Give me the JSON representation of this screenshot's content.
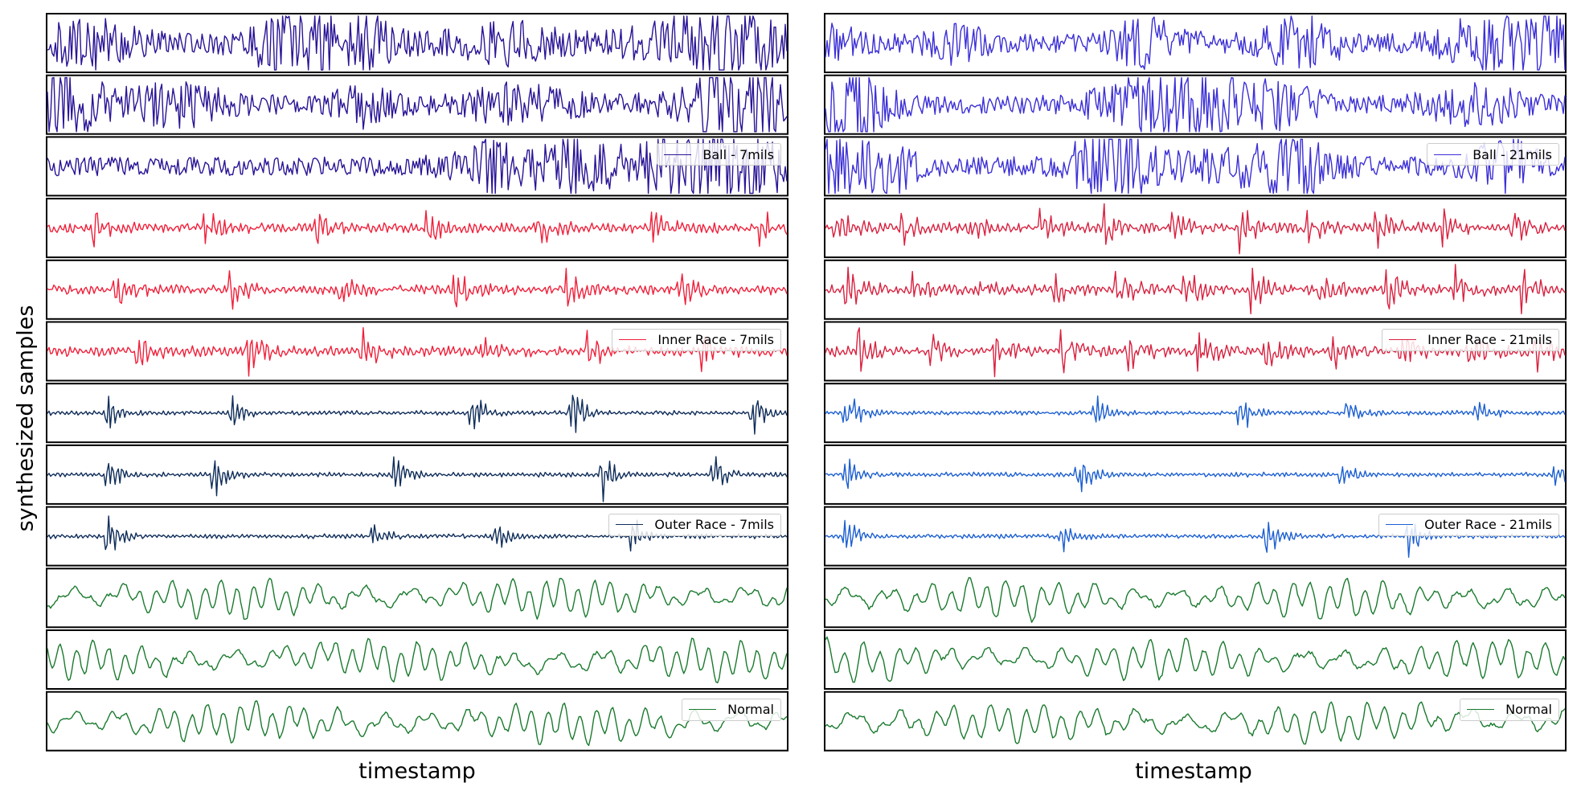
{
  "chart_data": [
    {
      "type": "line",
      "title": "",
      "xlabel": "timestamp",
      "ylabel": "synthesized samples",
      "grid": false,
      "groups": [
        {
          "legend": "Ball - 7mils",
          "color": "#2a1496",
          "legend_position": "bottom-right",
          "samples": 3,
          "kind": "noise"
        },
        {
          "legend": "Inner Race - 7mils",
          "color": "#f0203a",
          "legend_position": "bottom-right",
          "samples": 3,
          "kind": "impulse"
        },
        {
          "legend": "Outer Race - 7mils",
          "color": "#0f2d5a",
          "legend_position": "bottom-right",
          "samples": 3,
          "kind": "burst"
        },
        {
          "legend": "Normal",
          "color": "#1a7a2e",
          "legend_position": "bottom-right",
          "samples": 3,
          "kind": "smooth"
        }
      ]
    },
    {
      "type": "line",
      "title": "",
      "xlabel": "timestamp",
      "ylabel": "",
      "grid": false,
      "groups": [
        {
          "legend": "Ball - 21mils",
          "color": "#3b2fd6",
          "legend_position": "bottom-right",
          "samples": 3,
          "kind": "noise"
        },
        {
          "legend": "Inner Race - 21mils",
          "color": "#d8213f",
          "legend_position": "bottom-right",
          "samples": 3,
          "kind": "impulse"
        },
        {
          "legend": "Outer Race - 21mils",
          "color": "#1c5fd1",
          "legend_position": "bottom-right",
          "samples": 3,
          "kind": "burst"
        },
        {
          "legend": "Normal",
          "color": "#1a7a2e",
          "legend_position": "bottom-right",
          "samples": 3,
          "kind": "smooth"
        }
      ]
    }
  ]
}
